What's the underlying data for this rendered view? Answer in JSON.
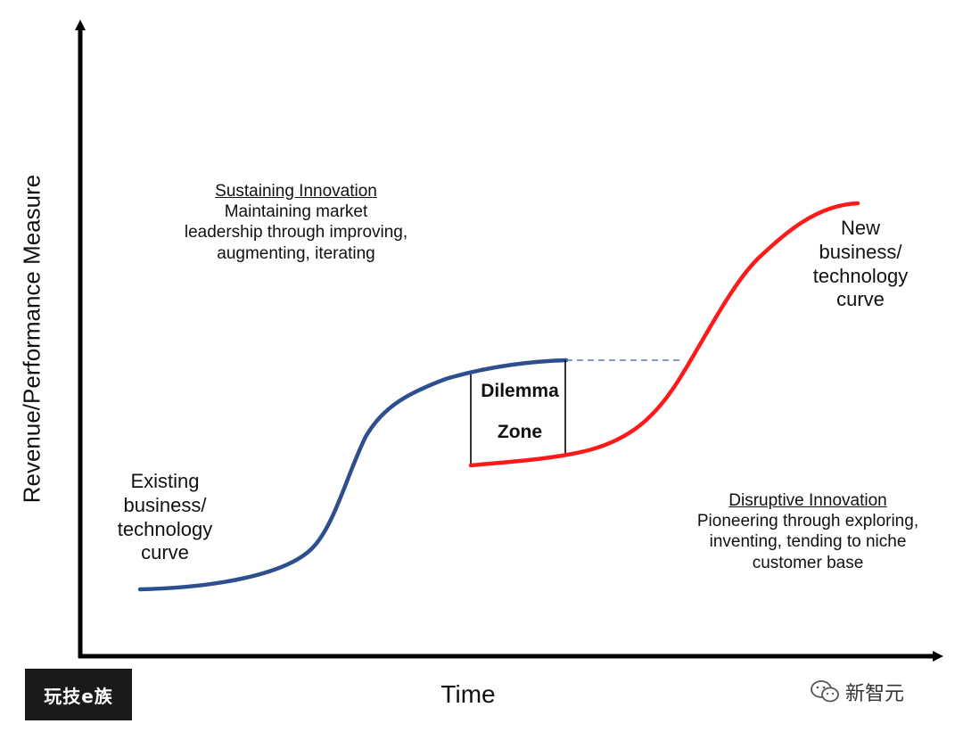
{
  "axes": {
    "x_label": "Time",
    "y_label": "Revenue/Performance Measure"
  },
  "annotations": {
    "sustaining": {
      "title": "Sustaining Innovation",
      "lines": [
        "Maintaining market",
        "leadership through improving,",
        "augmenting, iterating"
      ]
    },
    "disruptive": {
      "title": "Disruptive Innovation",
      "lines": [
        "Pioneering through exploring,",
        "inventing, tending to niche",
        "customer base"
      ]
    },
    "existing_curve_label": [
      "Existing",
      "business/",
      "technology",
      "curve"
    ],
    "new_curve_label": [
      "New",
      "business/",
      "technology",
      "curve"
    ],
    "dilemma_zone": [
      "Dilemma",
      "Zone"
    ]
  },
  "colors": {
    "existing_curve": "#2e4f8f",
    "new_curve": "#ff1a1a",
    "dashed_line": "#5b7fc0",
    "axis": "#000000"
  },
  "watermarks": {
    "left_logo": "玩技e族",
    "right_logo": "新智元"
  }
}
